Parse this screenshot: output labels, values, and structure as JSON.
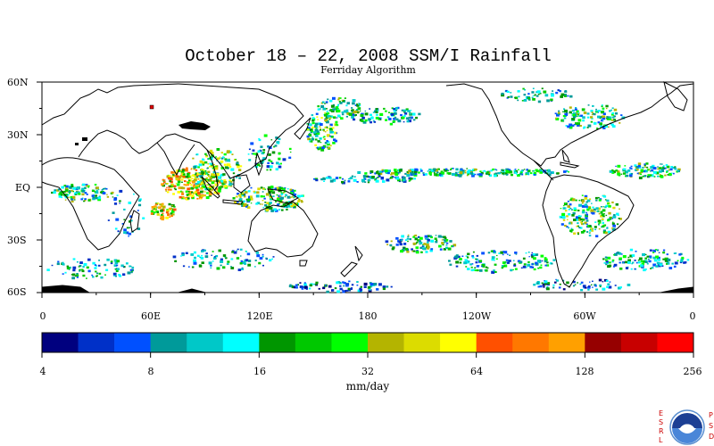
{
  "title": "October 18 – 22, 2008 SSM/I Rainfall",
  "subtitle": "Ferriday Algorithm",
  "map": {
    "lat_labels": [
      "60N",
      "30N",
      "EQ",
      "30S",
      "60S"
    ],
    "lon_labels": [
      "0",
      "60E",
      "120E",
      "180",
      "120W",
      "60W",
      "0"
    ],
    "extent": {
      "lon": [
        0,
        360
      ],
      "lat": [
        -60,
        60
      ]
    }
  },
  "colorbar": {
    "tick_labels": [
      "4",
      "8",
      "16",
      "32",
      "64",
      "128",
      "256"
    ],
    "units": "mm/day",
    "colors": [
      "#00007f",
      "#0030c8",
      "#0050ff",
      "#009a9a",
      "#00c8c8",
      "#00ffff",
      "#009600",
      "#00c800",
      "#00ff00",
      "#b4b400",
      "#dcdc00",
      "#ffff00",
      "#ff5000",
      "#ff7800",
      "#ffa000",
      "#960000",
      "#c80000",
      "#ff0000"
    ]
  },
  "logo": {
    "left_letters": [
      "E",
      "S",
      "R",
      "L"
    ],
    "right_letters": [
      "P",
      "S",
      "D"
    ],
    "name": "noaa-logo"
  }
}
